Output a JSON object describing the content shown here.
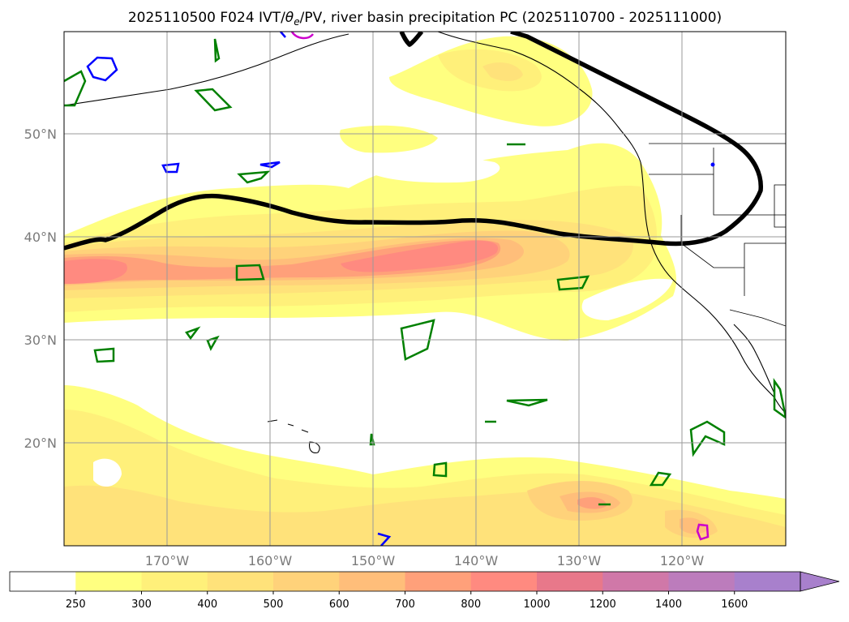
{
  "title": "2025110500 F024 IVT/θe/PV, river basin precipitation PC (2025110700 - 2025111000)",
  "title_parts": {
    "prefix": "2025110500 F024 IVT/",
    "theta": "θ",
    "sub": "e",
    "suffix": "/PV, river basin precipitation PC (2025110700 - 2025111000)"
  },
  "map": {
    "projection": "equirectangular",
    "lon_range": [
      -180,
      -110
    ],
    "lat_range": [
      10,
      60
    ],
    "lat_labels": [
      "50°N",
      "40°N",
      "30°N",
      "20°N"
    ],
    "lon_labels": [
      "170°W",
      "160°W",
      "150°W",
      "140°W",
      "130°W",
      "120°W"
    ]
  },
  "colorbar": {
    "levels": [
      "250",
      "300",
      "400",
      "500",
      "600",
      "700",
      "800",
      "1000",
      "1200",
      "1400",
      "1600"
    ],
    "colors": [
      "#ffffff",
      "#ffff80",
      "#fff07a",
      "#ffe27a",
      "#ffd27a",
      "#ffbe7a",
      "#ffa07a",
      "#ff8a80",
      "#e8788a",
      "#d078a8",
      "#bc7cbc",
      "#a880cc"
    ],
    "extend": "max"
  },
  "contours": {
    "pv_color": "#008000",
    "theta_color": "#0000ff",
    "magenta_color": "#cc00cc",
    "thick_line_color": "#000000"
  }
}
